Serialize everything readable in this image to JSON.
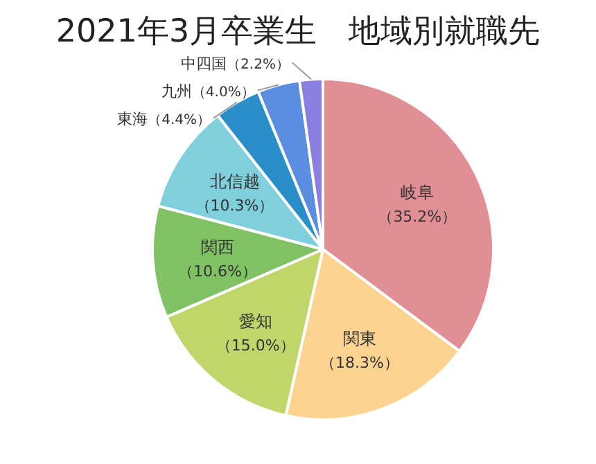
{
  "chart_data": {
    "type": "pie",
    "title": "2021年3月卒業生　地域別就職先",
    "categories": [
      "岐阜",
      "関東",
      "愛知",
      "関西",
      "北信越",
      "東海",
      "九州",
      "中四国"
    ],
    "values": [
      35.2,
      18.3,
      15.0,
      10.6,
      10.3,
      4.4,
      4.0,
      2.2
    ],
    "value_labels": [
      "（35.2%）",
      "（18.3%）",
      "（15.0%）",
      "（10.6%）",
      "（10.3%）",
      "（4.4%）",
      "（4.0%）",
      "（2.2%）"
    ],
    "colors": [
      "#e08f95",
      "#fdd48f",
      "#c0d66a",
      "#7fc163",
      "#7fcfdc",
      "#2a8fc9",
      "#5b8de0",
      "#8a7fe0"
    ]
  }
}
